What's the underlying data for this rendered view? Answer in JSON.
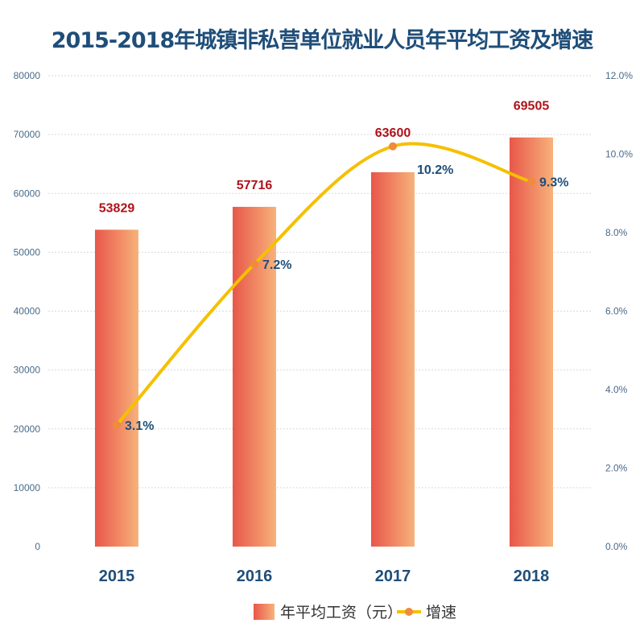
{
  "chart_data": {
    "type": "bar+line",
    "title": "2015-2018年城镇非私营单位就业人员年平均工资及增速",
    "categories": [
      "2015",
      "2016",
      "2017",
      "2018"
    ],
    "series": [
      {
        "name": "年平均工资（元）",
        "type": "bar",
        "axis": "left",
        "values": [
          53829,
          57716,
          63600,
          69505
        ],
        "labels": [
          "53829",
          "57716",
          "63600",
          "69505"
        ],
        "color": "#e8574a",
        "color_end": "#f7b27a"
      },
      {
        "name": "增速",
        "type": "line",
        "axis": "right",
        "values": [
          3.1,
          7.2,
          10.2,
          9.3
        ],
        "labels": [
          "3.1%",
          "7.2%",
          "10.2%",
          "9.3%"
        ],
        "color": "#f5c000",
        "marker_color": "#f08a3c"
      }
    ],
    "left_axis": {
      "range": [
        0,
        80000
      ],
      "ticks": [
        "0",
        "10000",
        "20000",
        "30000",
        "40000",
        "50000",
        "60000",
        "70000",
        "80000"
      ]
    },
    "right_axis": {
      "range": [
        0,
        12
      ],
      "ticks": [
        "0.0%",
        "2.0%",
        "4.0%",
        "6.0%",
        "8.0%",
        "10.0%",
        "12.0%"
      ]
    },
    "grid": true,
    "legend": "bottom"
  }
}
